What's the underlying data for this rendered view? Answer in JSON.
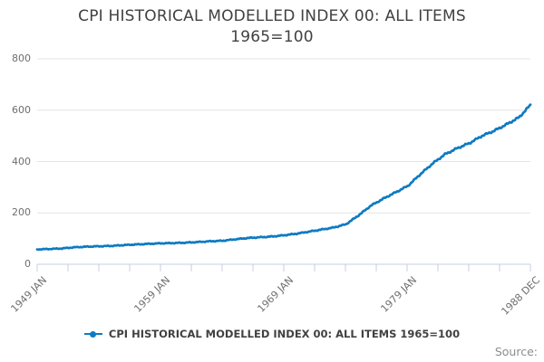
{
  "title": {
    "line1": "CPI HISTORICAL MODELLED INDEX 00: ALL ITEMS",
    "line2": "1965=100"
  },
  "legend": {
    "label": "CPI HISTORICAL MODELLED INDEX 00: ALL ITEMS 1965=100",
    "marker": "line-dot-marker"
  },
  "source_label": "Source:",
  "colors": {
    "line": "#0f7bc2",
    "grid": "#e4e4e4",
    "axis": "#c5cfe0",
    "ink": "#414042",
    "axis_ink": "#6d6e71"
  },
  "chart_data": {
    "type": "line",
    "title": "CPI HISTORICAL MODELLED INDEX 00: ALL ITEMS 1965=100",
    "xlabel": "",
    "ylabel": "",
    "ylim": [
      0,
      800
    ],
    "y_ticks": [
      "0",
      "200",
      "400",
      "600",
      "800"
    ],
    "y_tick_values": [
      0,
      200,
      400,
      600,
      800
    ],
    "x_major_tick_labels": [
      "1949 JAN",
      "1959 JAN",
      "1969 JAN",
      "1979 JAN",
      "1988 DEC"
    ],
    "x_minor_ticks_total": 17,
    "x_labeled_tick_indices": [
      0,
      4,
      8,
      12,
      16
    ],
    "x_range_months": [
      "1949-01",
      "1988-12"
    ],
    "grid": "horizontal-only",
    "legend_position": "bottom-center",
    "interpolation": "monthly",
    "series": [
      {
        "name": "CPI HISTORICAL MODELLED INDEX 00: ALL ITEMS 1965=100",
        "color": "#0f7bc2",
        "points": [
          [
            "1949-01",
            58
          ],
          [
            "1950-01",
            59.5
          ],
          [
            "1951-01",
            61.5
          ],
          [
            "1952-01",
            66
          ],
          [
            "1953-01",
            68.5
          ],
          [
            "1954-01",
            70
          ],
          [
            "1955-01",
            71.5
          ],
          [
            "1956-01",
            74.5
          ],
          [
            "1957-01",
            77
          ],
          [
            "1958-01",
            79.5
          ],
          [
            "1959-01",
            81.5
          ],
          [
            "1960-01",
            82.5
          ],
          [
            "1961-01",
            84
          ],
          [
            "1962-01",
            86.5
          ],
          [
            "1963-01",
            89.5
          ],
          [
            "1964-01",
            91.5
          ],
          [
            "1965-01",
            97
          ],
          [
            "1966-01",
            102
          ],
          [
            "1967-01",
            105
          ],
          [
            "1968-01",
            108
          ],
          [
            "1969-01",
            113
          ],
          [
            "1970-01",
            119
          ],
          [
            "1971-01",
            127
          ],
          [
            "1972-01",
            135
          ],
          [
            "1973-01",
            143
          ],
          [
            "1974-01",
            156
          ],
          [
            "1975-01",
            190
          ],
          [
            "1976-01",
            228
          ],
          [
            "1977-01",
            255
          ],
          [
            "1978-01",
            280
          ],
          [
            "1979-01",
            305
          ],
          [
            "1980-01",
            350
          ],
          [
            "1981-01",
            392
          ],
          [
            "1982-01",
            428
          ],
          [
            "1983-01",
            452
          ],
          [
            "1984-01",
            472
          ],
          [
            "1985-01",
            500
          ],
          [
            "1986-01",
            520
          ],
          [
            "1987-01",
            545
          ],
          [
            "1988-01",
            572
          ],
          [
            "1988-12",
            620
          ]
        ]
      }
    ]
  }
}
